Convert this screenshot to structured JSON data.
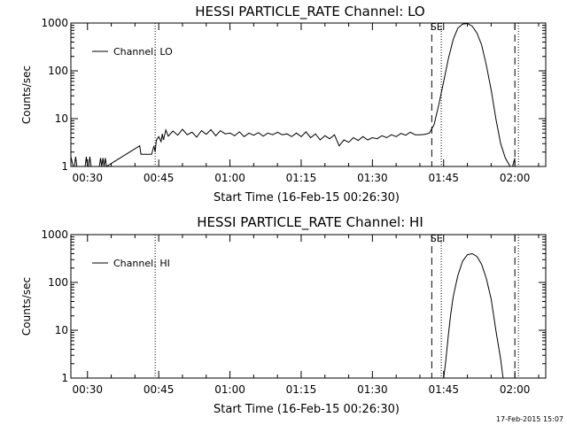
{
  "footer_timestamp": "17-Feb-2015 15:07",
  "chart_data": [
    {
      "type": "line",
      "title": "HESSI PARTICLE_RATE Channel: LO",
      "xlabel": "Start Time (16-Feb-15 00:26:30)",
      "ylabel": "Counts/sec",
      "yscale": "log",
      "ylim": [
        1,
        1000
      ],
      "xlim": [
        "00:26:30",
        "02:06:30"
      ],
      "x_ticks": [
        "00:30",
        "00:45",
        "01:00",
        "01:15",
        "01:30",
        "01:45",
        "02:00"
      ],
      "y_ticks": [
        "1",
        "10",
        "100",
        "1000"
      ],
      "legend": {
        "entries": [
          "Channel: LO"
        ],
        "position": "top-left"
      },
      "annotations": [
        {
          "text": "SE",
          "x": "01:43:30"
        }
      ],
      "event_lines": [
        {
          "style": "dotted",
          "x": "00:44:15"
        },
        {
          "style": "dashed",
          "x": "01:42:30"
        },
        {
          "style": "dotted",
          "x": "01:44:30"
        },
        {
          "style": "dashed",
          "x": "02:00:00"
        },
        {
          "style": "dotted",
          "x": "02:00:45"
        }
      ],
      "series": [
        {
          "name": "Channel: LO",
          "x": [
            "00:26:30",
            "00:27:00",
            "00:27:15",
            "00:27:30",
            "00:27:45",
            "00:28:00",
            "00:29:30",
            "00:29:45",
            "00:30:00",
            "00:30:15",
            "00:30:30",
            "00:30:45",
            "00:32:30",
            "00:32:45",
            "00:33:00",
            "00:33:15",
            "00:33:30",
            "00:33:45",
            "00:34:00",
            "00:41:00",
            "00:41:15",
            "00:41:30",
            "00:42:00",
            "00:43:00",
            "00:43:30",
            "00:44:00",
            "00:44:15",
            "00:44:30",
            "00:45:00",
            "00:45:30",
            "00:45:45",
            "00:46:00",
            "00:46:30",
            "00:47:00",
            "00:48:00",
            "00:49:00",
            "00:50:00",
            "00:51:00",
            "00:52:00",
            "00:53:00",
            "00:54:00",
            "00:55:00",
            "00:56:00",
            "00:57:00",
            "00:58:00",
            "00:59:00",
            "01:00:00",
            "01:01:00",
            "01:02:00",
            "01:03:00",
            "01:04:00",
            "01:05:00",
            "01:06:00",
            "01:07:00",
            "01:08:00",
            "01:09:00",
            "01:10:00",
            "01:11:00",
            "01:12:00",
            "01:13:00",
            "01:14:00",
            "01:15:00",
            "01:16:00",
            "01:17:00",
            "01:18:00",
            "01:19:00",
            "01:20:00",
            "01:21:00",
            "01:22:00",
            "01:23:00",
            "01:24:00",
            "01:25:00",
            "01:26:00",
            "01:27:00",
            "01:28:00",
            "01:29:00",
            "01:30:00",
            "01:31:00",
            "01:32:00",
            "01:33:00",
            "01:34:00",
            "01:35:00",
            "01:36:00",
            "01:37:00",
            "01:38:00",
            "01:39:00",
            "01:40:00",
            "01:41:00",
            "01:42:00",
            "01:43:00",
            "01:44:00",
            "01:45:00",
            "01:46:00",
            "01:47:00",
            "01:48:00",
            "01:49:00",
            "01:50:00",
            "01:51:00",
            "01:52:00",
            "01:53:00",
            "01:54:00",
            "01:55:00",
            "01:56:00",
            "01:57:00",
            "01:58:00",
            "01:59:00",
            "01:59:30",
            "02:00:00"
          ],
          "y": [
            1.6,
            1,
            1,
            1.6,
            1,
            1,
            1,
            1.6,
            1,
            1,
            1.6,
            1,
            1,
            1.5,
            1,
            1.5,
            1,
            1.5,
            1,
            2.7,
            1.8,
            1.8,
            1.8,
            1.8,
            1.8,
            2.7,
            2,
            3.5,
            4.2,
            3.3,
            4.8,
            3.6,
            5.8,
            4.3,
            5.5,
            4.5,
            6.0,
            4.6,
            5.2,
            4.1,
            5.6,
            4.7,
            5.9,
            4.4,
            5.6,
            4.8,
            5.0,
            4.4,
            5.3,
            4.2,
            5.0,
            4.5,
            5.1,
            4.3,
            5.0,
            4.6,
            5.2,
            4.6,
            4.8,
            4.2,
            5.0,
            4.2,
            5.3,
            4.0,
            4.8,
            3.6,
            4.4,
            3.8,
            4.6,
            2.7,
            3.6,
            3.2,
            4.0,
            3.5,
            4.2,
            3.6,
            4.0,
            3.8,
            4.4,
            4.0,
            4.6,
            4.2,
            4.9,
            4.5,
            5.2,
            4.6,
            4.6,
            4.7,
            5.0,
            7.5,
            20,
            60,
            180,
            450,
            780,
            950,
            980,
            860,
            620,
            350,
            130,
            40,
            10,
            3,
            1.5,
            1,
            1,
            1.5
          ],
          "color": "#000000"
        }
      ]
    },
    {
      "type": "line",
      "title": "HESSI PARTICLE_RATE Channel: HI",
      "xlabel": "Start Time (16-Feb-15 00:26:30)",
      "ylabel": "Counts/sec",
      "yscale": "log",
      "ylim": [
        1,
        1000
      ],
      "xlim": [
        "00:26:30",
        "02:06:30"
      ],
      "x_ticks": [
        "00:30",
        "00:45",
        "01:00",
        "01:15",
        "01:30",
        "01:45",
        "02:00"
      ],
      "y_ticks": [
        "1",
        "10",
        "100",
        "1000"
      ],
      "legend": {
        "entries": [
          "Channel: HI"
        ],
        "position": "top-left"
      },
      "annotations": [
        {
          "text": "SE",
          "x": "01:43:30"
        }
      ],
      "event_lines": [
        {
          "style": "dotted",
          "x": "00:44:15"
        },
        {
          "style": "dashed",
          "x": "01:42:30"
        },
        {
          "style": "dotted",
          "x": "01:44:30"
        },
        {
          "style": "dashed",
          "x": "02:00:00"
        },
        {
          "style": "dotted",
          "x": "02:00:45"
        }
      ],
      "series": [
        {
          "name": "Channel: HI",
          "x": [
            "01:45:00",
            "01:45:30",
            "01:46:00",
            "01:46:30",
            "01:47:00",
            "01:48:00",
            "01:49:00",
            "01:50:00",
            "01:51:00",
            "01:52:00",
            "01:53:00",
            "01:54:00",
            "01:55:00",
            "01:56:00",
            "01:57:00",
            "01:57:30"
          ],
          "y": [
            1,
            2.5,
            8,
            22,
            50,
            140,
            280,
            380,
            400,
            350,
            240,
            120,
            45,
            10,
            2.5,
            1
          ],
          "color": "#000000"
        }
      ]
    }
  ]
}
